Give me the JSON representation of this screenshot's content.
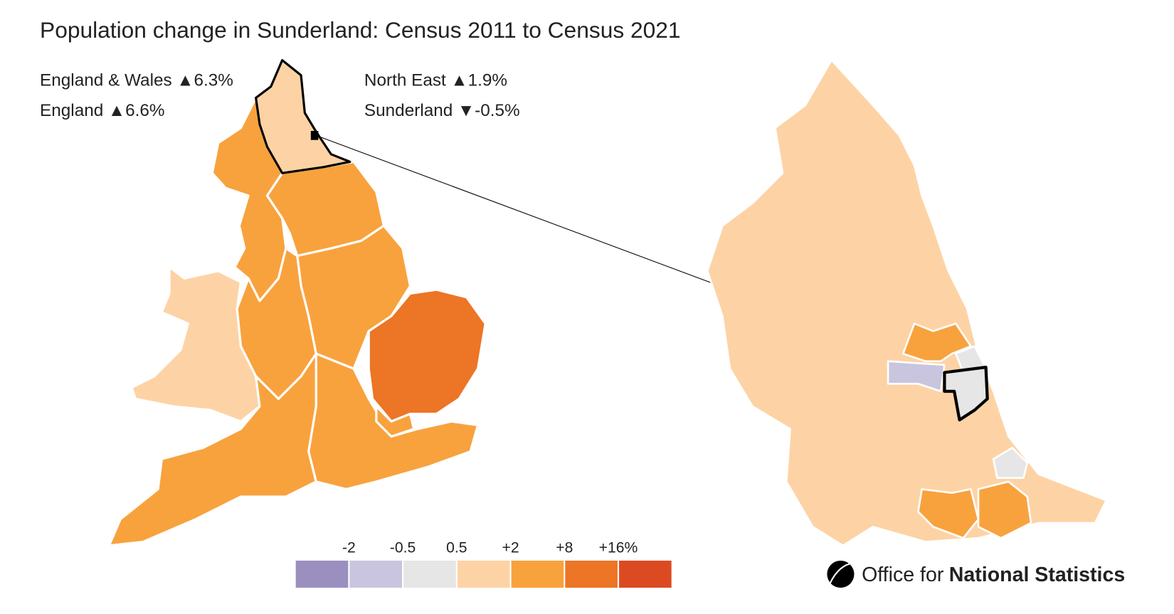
{
  "title": "Population change in Sunderland: Census 2011 to Census 2021",
  "stats": [
    "England & Wales ▲6.3%",
    "England ▲6.6%",
    "North East ▲1.9%",
    "Sunderland ▼-0.5%"
  ],
  "legend": {
    "colors": [
      "#9b8fc0",
      "#c9c5df",
      "#e6e6e6",
      "#fdd3a5",
      "#f8a23e",
      "#ec7526",
      "#dc4a22"
    ],
    "ticks": [
      "-2",
      "-0.5",
      "0.5",
      "+2",
      "+8",
      "+16%"
    ]
  },
  "logo": {
    "light": "Office for",
    "bold": "National Statistics"
  }
}
